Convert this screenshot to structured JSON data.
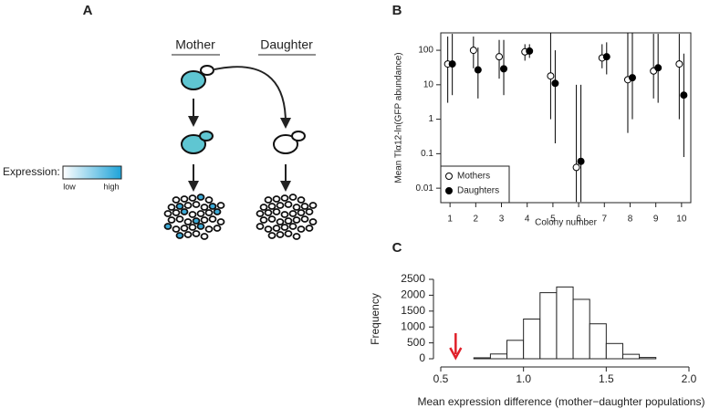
{
  "panel_labels": [
    "A",
    "B",
    "C"
  ],
  "diagram": {
    "mother": "Mother",
    "daughter": "Daughter",
    "legend_title": "Expression:",
    "low": "low",
    "high": "high"
  },
  "chart_data": [
    {
      "type": "scatter",
      "ylabel": "Mean Tlα12-ln(GFP abundance)",
      "xlabel": "Colony number",
      "x": [
        1,
        2,
        3,
        4,
        5,
        6,
        7,
        8,
        9,
        10
      ],
      "series": [
        {
          "name": "Mothers",
          "marker": "open",
          "color": "#000000",
          "values": [
            40,
            100,
            65,
            90,
            18,
            0.04,
            60,
            14,
            25,
            40
          ],
          "lower": [
            3,
            30,
            15,
            50,
            1,
            0.004,
            30,
            0.4,
            4,
            1
          ],
          "upper": [
            250,
            250,
            200,
            150,
            320,
            10,
            150,
            320,
            300,
            300
          ]
        },
        {
          "name": "Daughters",
          "marker": "filled",
          "color": "#000000",
          "values": [
            40,
            27,
            29,
            95,
            11,
            0.06,
            65,
            16,
            31,
            5
          ],
          "lower": [
            5,
            4,
            5,
            60,
            0.2,
            0.004,
            20,
            1,
            3,
            0.08
          ],
          "upper": [
            300,
            120,
            200,
            150,
            100,
            10,
            170,
            320,
            300,
            80
          ]
        }
      ],
      "xlim": [
        0.64,
        10.36
      ],
      "xticks": [
        1,
        2,
        3,
        4,
        5,
        6,
        7,
        8,
        9,
        10
      ],
      "ylim": [
        0.0038,
        320
      ],
      "yticks": [
        0.01,
        0.1,
        1,
        10,
        100
      ],
      "log_y": true,
      "legend": "lower left"
    },
    {
      "type": "histogram",
      "ylabel": "Frequency",
      "xlabel": "Mean expression difference (mother−daughter populations)",
      "bins": [
        0.7,
        0.8,
        0.9,
        1.0,
        1.1,
        1.2,
        1.3,
        1.4,
        1.5,
        1.6,
        1.7,
        1.8
      ],
      "values": [
        30,
        150,
        580,
        1250,
        2080,
        2260,
        1870,
        1100,
        480,
        140,
        40
      ],
      "color": "#ffffff",
      "xlim": [
        0.5,
        2.0
      ],
      "xticks": [
        0.5,
        {
          "value": 1.0,
          "label": "1.0"
        },
        1.5,
        {
          "value": 2.0,
          "label": "2.0"
        }
      ],
      "ylim": [
        0,
        2500
      ],
      "yticks": [
        0,
        500,
        1000,
        1500,
        2000,
        2500
      ],
      "arrow_x": 0.59,
      "arrow_color": "#e0202a"
    }
  ]
}
